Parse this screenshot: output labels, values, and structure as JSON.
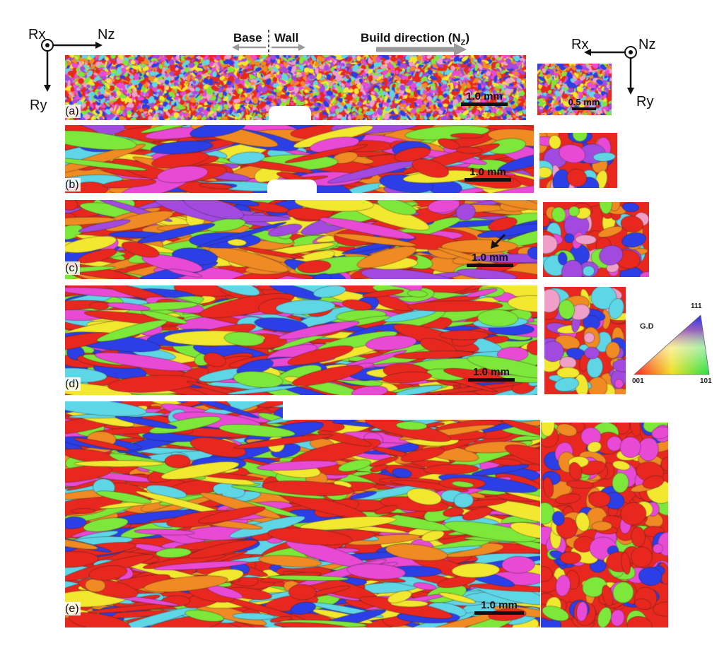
{
  "axes_left": {
    "out_of_plane": "Rx",
    "horizontal": "Nz",
    "vertical": "Ry"
  },
  "axes_right": {
    "out_of_plane": "Nz",
    "horizontal": "Rx",
    "vertical": "Ry"
  },
  "header": {
    "base": "Base",
    "wall": "Wall",
    "build_direction": "Build direction (N",
    "build_direction_sub": "Z",
    "build_direction_end": ")"
  },
  "panels": [
    {
      "label": "(a)",
      "scale": "1.0 mm",
      "cross_scale": "0.5 mm"
    },
    {
      "label": "(b)",
      "scale": "1.0 mm"
    },
    {
      "label": "(c)",
      "scale": "1.0 mm"
    },
    {
      "label": "(d)",
      "scale": "1.0 mm"
    },
    {
      "label": "(e)",
      "scale": "1.0 mm"
    }
  ],
  "legend": {
    "title": "G.D",
    "top": "111",
    "left": "001",
    "right": "101"
  },
  "colors": {
    "red": "#e8281e",
    "orange": "#f08a22",
    "yellow": "#f2e830",
    "green": "#7ee83a",
    "cyan": "#5fd6e6",
    "blue": "#2c3ee6",
    "purple": "#a24ae0",
    "magenta": "#e84ad6",
    "pink": "#f0a0c8"
  }
}
